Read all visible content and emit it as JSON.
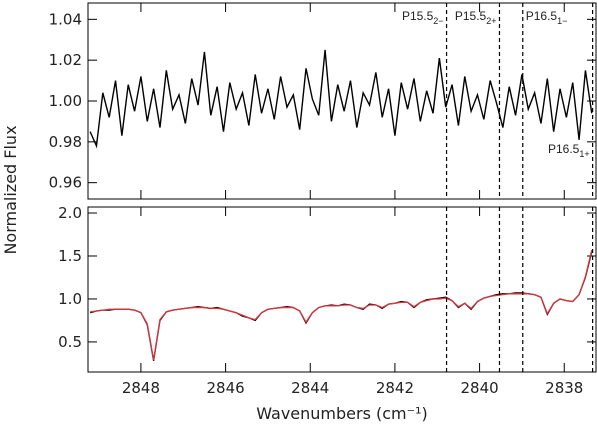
{
  "chart_data": {
    "type": "line",
    "y_label": "Normalized Flux",
    "x_label": "Wavenumbers (cm⁻¹)",
    "xlim": [
      2849.25,
      2837.25
    ],
    "xticks": [
      2848,
      2846,
      2844,
      2842,
      2840,
      2838
    ],
    "x": [
      2849.2,
      2849.05,
      2848.9,
      2848.75,
      2848.6,
      2848.45,
      2848.3,
      2848.15,
      2848.0,
      2847.85,
      2847.7,
      2847.55,
      2847.4,
      2847.25,
      2847.1,
      2846.95,
      2846.8,
      2846.65,
      2846.5,
      2846.35,
      2846.2,
      2846.05,
      2845.9,
      2845.75,
      2845.6,
      2845.45,
      2845.3,
      2845.15,
      2845.0,
      2844.85,
      2844.7,
      2844.55,
      2844.4,
      2844.25,
      2844.1,
      2843.95,
      2843.8,
      2843.65,
      2843.5,
      2843.35,
      2843.2,
      2843.05,
      2842.9,
      2842.75,
      2842.6,
      2842.45,
      2842.3,
      2842.15,
      2842.0,
      2841.85,
      2841.7,
      2841.55,
      2841.4,
      2841.25,
      2841.1,
      2840.95,
      2840.8,
      2840.65,
      2840.5,
      2840.35,
      2840.2,
      2840.05,
      2839.9,
      2839.75,
      2839.6,
      2839.45,
      2839.3,
      2839.15,
      2839.0,
      2838.85,
      2838.7,
      2838.55,
      2838.4,
      2838.25,
      2838.1,
      2837.95,
      2837.8,
      2837.65,
      2837.5,
      2837.35
    ],
    "lines": [
      {
        "x": 2840.78,
        "label": "P15.5",
        "sub": "2−"
      },
      {
        "x": 2839.53,
        "label": "P15.5",
        "sub": "2+"
      },
      {
        "x": 2838.98,
        "label": "P16.5",
        "sub": "1−"
      },
      {
        "x": 2837.33,
        "label": "P16.5",
        "sub": "1+"
      }
    ],
    "panels": [
      {
        "ylim": [
          0.952,
          1.048
        ],
        "yticks": [
          0.96,
          0.98,
          {
            "value": 1,
            "label": "1.00"
          },
          1.02,
          1.04
        ],
        "series": [
          {
            "color": "#000000",
            "values": [
              0.985,
              0.978,
              1.004,
              0.992,
              1.01,
              0.983,
              1.008,
              0.995,
              1.012,
              0.99,
              1.006,
              0.987,
              1.015,
              0.996,
              1.003,
              0.989,
              1.011,
              0.998,
              1.024,
              0.993,
              1.007,
              0.985,
              1.009,
              0.996,
              1.004,
              0.988,
              1.013,
              0.994,
              1.006,
              0.991,
              1.012,
              0.997,
              1.003,
              0.986,
              1.016,
              1.001,
              0.993,
              1.025,
              0.99,
              1.008,
              0.995,
              1.01,
              0.987,
              1.004,
              0.998,
              1.014,
              0.992,
              1.006,
              0.983,
              1.009,
              0.996,
              1.011,
              0.99,
              1.005,
              0.994,
              1.021,
              0.997,
              1.008,
              0.988,
              1.012,
              0.995,
              1.003,
              0.991,
              1.01,
              0.999,
              0.987,
              1.007,
              0.993,
              1.013,
              0.996,
              1.004,
              0.989,
              1.011,
              0.985,
              1.006,
              0.992,
              1.009,
              0.981,
              1.015,
              0.994
            ]
          }
        ]
      },
      {
        "ylim": [
          0.15,
          2.07
        ],
        "yticks": [
          0.5,
          {
            "value": 1,
            "label": "1.0"
          },
          1.5,
          {
            "value": 2,
            "label": "2.0"
          }
        ],
        "series": [
          {
            "color": "#000000",
            "values": [
              0.84,
              0.86,
              0.87,
              0.87,
              0.88,
              0.88,
              0.88,
              0.87,
              0.84,
              0.7,
              0.28,
              0.75,
              0.85,
              0.87,
              0.88,
              0.89,
              0.9,
              0.91,
              0.9,
              0.89,
              0.9,
              0.88,
              0.86,
              0.84,
              0.8,
              0.78,
              0.75,
              0.84,
              0.88,
              0.89,
              0.9,
              0.91,
              0.9,
              0.86,
              0.72,
              0.84,
              0.9,
              0.92,
              0.93,
              0.92,
              0.94,
              0.93,
              0.9,
              0.88,
              0.94,
              0.93,
              0.89,
              0.94,
              0.95,
              0.97,
              0.96,
              0.9,
              0.96,
              0.99,
              1.0,
              1.01,
              1.02,
              0.98,
              0.9,
              0.95,
              0.88,
              0.97,
              1.01,
              1.03,
              1.05,
              1.06,
              1.06,
              1.07,
              1.07,
              1.06,
              1.05,
              1.02,
              0.82,
              0.95,
              1.0,
              0.98,
              0.97,
              1.05,
              1.25,
              1.55
            ]
          },
          {
            "color": "#d9363e",
            "values": [
              0.85,
              0.86,
              0.87,
              0.88,
              0.88,
              0.88,
              0.88,
              0.87,
              0.84,
              0.71,
              0.29,
              0.76,
              0.85,
              0.87,
              0.88,
              0.89,
              0.9,
              0.9,
              0.9,
              0.89,
              0.89,
              0.88,
              0.86,
              0.84,
              0.81,
              0.78,
              0.76,
              0.84,
              0.88,
              0.89,
              0.9,
              0.9,
              0.9,
              0.86,
              0.73,
              0.84,
              0.9,
              0.92,
              0.92,
              0.92,
              0.93,
              0.93,
              0.9,
              0.89,
              0.93,
              0.93,
              0.9,
              0.94,
              0.95,
              0.96,
              0.96,
              0.91,
              0.96,
              0.98,
              1.0,
              1.0,
              1.01,
              0.98,
              0.91,
              0.95,
              0.89,
              0.97,
              1.01,
              1.03,
              1.04,
              1.05,
              1.06,
              1.06,
              1.06,
              1.06,
              1.05,
              1.02,
              0.83,
              0.95,
              1.0,
              0.98,
              0.97,
              1.05,
              1.26,
              1.57
            ]
          }
        ]
      }
    ]
  }
}
